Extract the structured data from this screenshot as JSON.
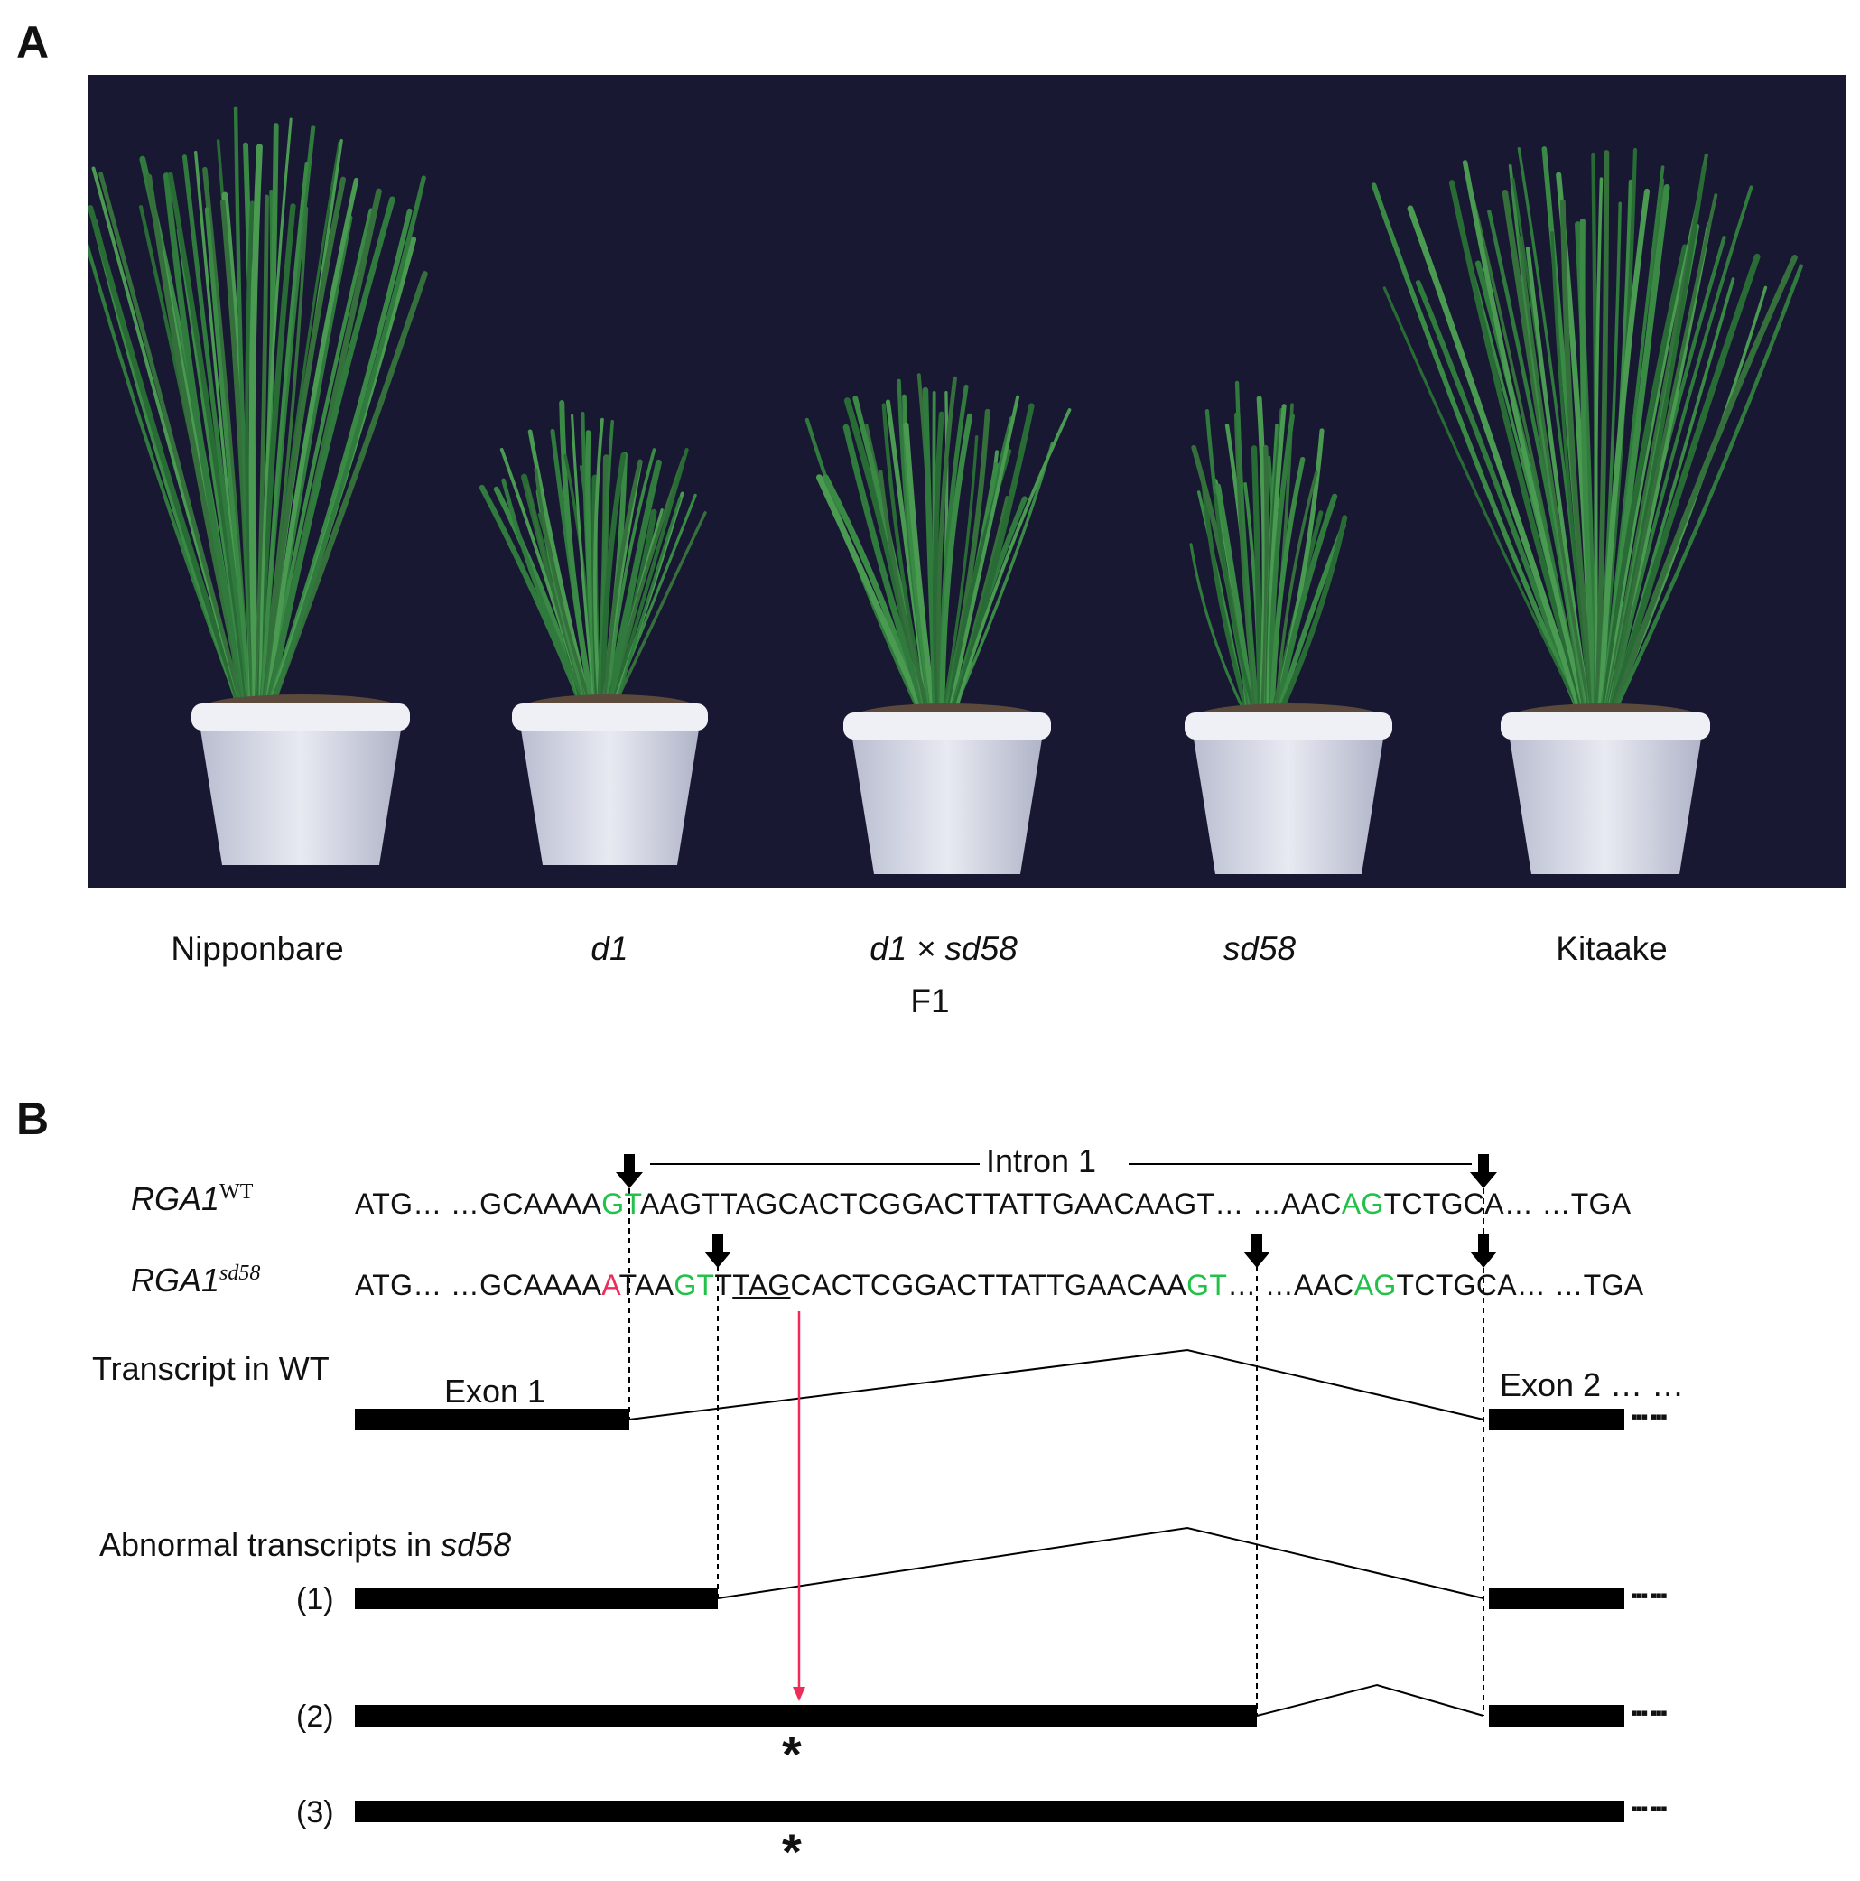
{
  "panels": {
    "a": "A",
    "b": "B"
  },
  "plants": [
    {
      "label": "Nipponbare",
      "italic": false
    },
    {
      "label": "d1",
      "italic": true
    },
    {
      "label": "d1 × sd58",
      "italic": true
    },
    {
      "label": "sd58",
      "italic": true
    },
    {
      "label": "Kitaake",
      "italic": false
    }
  ],
  "f1_label": "F1",
  "intron_label": "Intron 1",
  "rows": {
    "wt": {
      "gene": "RGA1",
      "sup": "WT",
      "seq": {
        "p1": "ATG… …GCAAAA",
        "p2": "GT",
        "p3": "AAGTTAGCACTCGGACTTATTGAACAAGT… …AAC",
        "p4": "AG",
        "p5": "TCTGCA… …TGA"
      }
    },
    "mut": {
      "gene": "RGA1",
      "sup": "sd58",
      "seq": {
        "p1": "ATG… …GCAAAA",
        "p2": "A",
        "p3": "TAA",
        "p4": "GT",
        "p5": "T",
        "p6": "TAG",
        "p7": "CACTCGGACTTATTGAACAA",
        "p8": "GT",
        "p9": "… …AAC",
        "p10": "AG",
        "p11": "TCTGCA… …TGA"
      }
    }
  },
  "transcript_wt": "Transcript in WT",
  "exon1": "Exon 1",
  "exon2": "Exon 2 … …",
  "abnormal_prefix": "Abnormal transcripts  in ",
  "abnormal_italic": "sd58",
  "transcripts": [
    "(1)",
    "(2)",
    "(3)"
  ],
  "ellipsis": "▪▪▪ ▪▪▪",
  "stop_marker": "*",
  "colors": {
    "splice": "#22c24a",
    "mutation": "#ee2c5a",
    "photo_bg": "#181832"
  }
}
